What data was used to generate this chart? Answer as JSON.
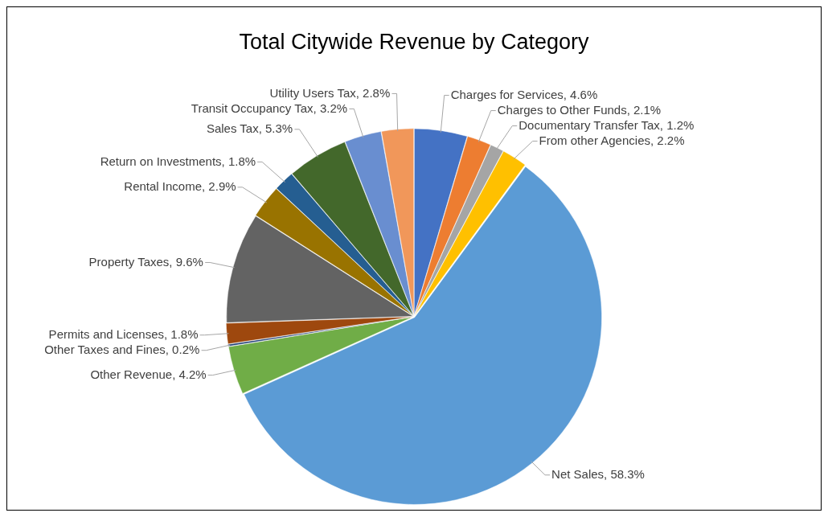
{
  "chart_data": {
    "type": "pie",
    "title": "Total Citywide Revenue by Category",
    "categories": [
      "Charges for Services",
      "Charges to Other Funds",
      "Documentary Transfer Tax",
      "From other Agencies",
      "Net Sales",
      "Other Revenue",
      "Other Taxes and Fines",
      "Permits and Licenses",
      "Property Taxes",
      "Rental Income",
      "Return on Investments",
      "Sales Tax",
      "Transit Occupancy Tax",
      "Utility Users Tax"
    ],
    "values": [
      4.6,
      2.1,
      1.2,
      2.2,
      58.3,
      4.2,
      0.2,
      1.8,
      9.6,
      2.9,
      1.8,
      5.3,
      3.2,
      2.8
    ],
    "colors": [
      "#4472c4",
      "#ed7d31",
      "#a5a5a5",
      "#ffc000",
      "#5b9bd5",
      "#70ad47",
      "#264478",
      "#9e480e",
      "#636363",
      "#997300",
      "#255e91",
      "#43682b",
      "#698ed0",
      "#f1975a"
    ],
    "value_labels": [
      "4.6%",
      "2.1%",
      "1.2%",
      "2.2%",
      "58.3%",
      "4.2%",
      "0.2%",
      "1.8%",
      "9.6%",
      "2.9%",
      "1.8%",
      "5.3%",
      "3.2%",
      "2.8%"
    ],
    "legend": false
  }
}
